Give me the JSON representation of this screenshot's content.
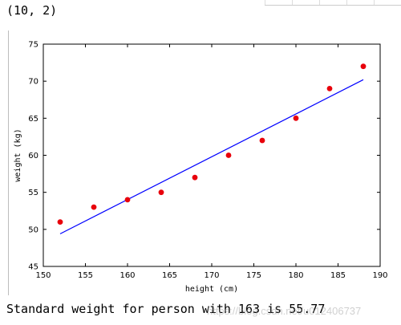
{
  "output_top": "(10, 2)",
  "output_bottom": "Standard weight for person with 163 is 55.77",
  "watermark": "https://blog.csdn.net/u012406737",
  "chart_data": {
    "type": "scatter",
    "title": "",
    "xlabel": "height (cm)",
    "ylabel": "weight (kg)",
    "xlim": [
      150,
      190
    ],
    "ylim": [
      45,
      75
    ],
    "xticks": [
      150,
      155,
      160,
      165,
      170,
      175,
      180,
      185,
      190
    ],
    "yticks": [
      45,
      50,
      55,
      60,
      65,
      70,
      75
    ],
    "series": [
      {
        "kind": "scatter",
        "color": "#e8000b",
        "points": [
          [
            152,
            51
          ],
          [
            156,
            53
          ],
          [
            160,
            54
          ],
          [
            164,
            55
          ],
          [
            168,
            57
          ],
          [
            172,
            60
          ],
          [
            176,
            62
          ],
          [
            180,
            65
          ],
          [
            184,
            69
          ],
          [
            188,
            72
          ]
        ]
      },
      {
        "kind": "line",
        "color": "#0000ff",
        "points": [
          [
            152,
            49.4
          ],
          [
            188,
            70.2
          ]
        ]
      }
    ],
    "grid": false
  }
}
